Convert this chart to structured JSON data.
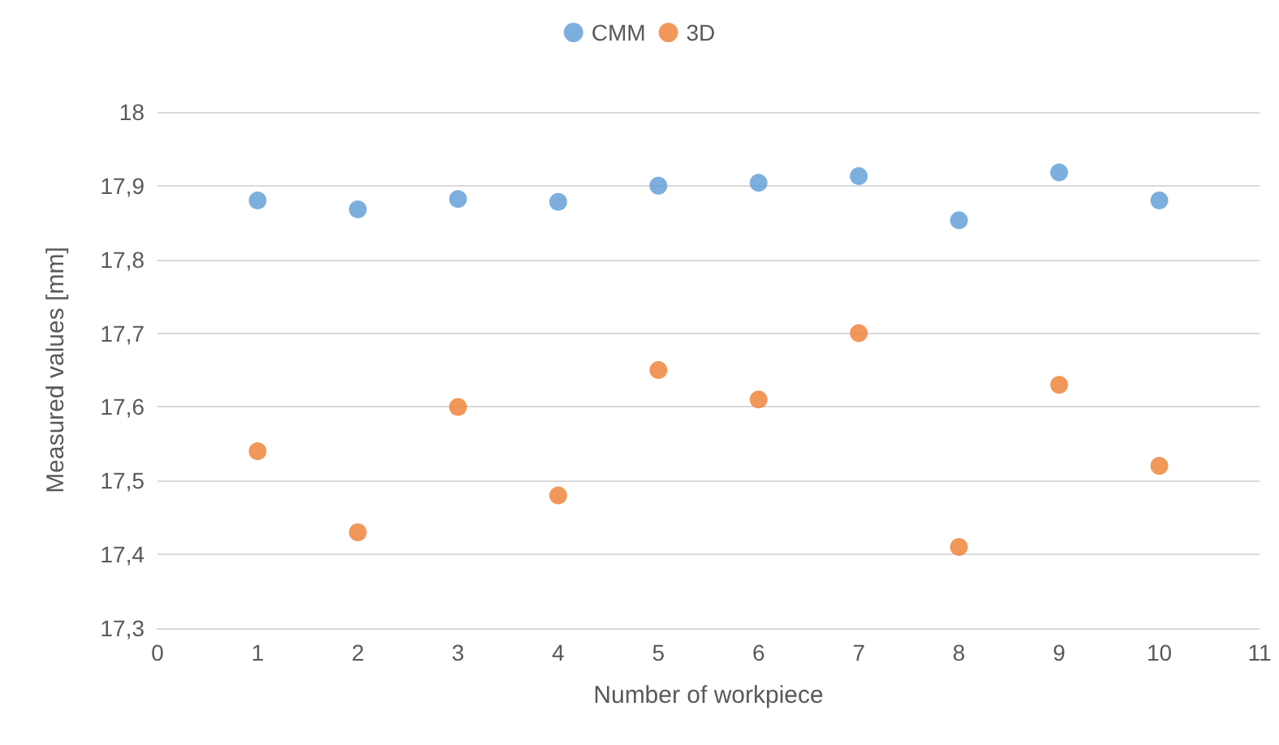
{
  "chart_data": {
    "type": "scatter",
    "xlabel": "Number of workpiece",
    "ylabel": "Measured values [mm]",
    "x": [
      1,
      2,
      3,
      4,
      5,
      6,
      7,
      8,
      9,
      10
    ],
    "series": [
      {
        "name": "CMM",
        "color": "#5b9bd5",
        "values": [
          17.88,
          17.868,
          17.882,
          17.878,
          17.9,
          17.904,
          17.913,
          17.853,
          17.918,
          17.88
        ]
      },
      {
        "name": "3D",
        "color": "#ed7d31",
        "values": [
          17.54,
          17.43,
          17.6,
          17.48,
          17.65,
          17.61,
          17.7,
          17.41,
          17.63,
          17.52
        ]
      }
    ],
    "xlim": [
      0,
      11
    ],
    "xticks": [
      0,
      1,
      2,
      3,
      4,
      5,
      6,
      7,
      8,
      9,
      10,
      11
    ],
    "ylim": [
      17.3,
      18
    ],
    "yticks": [
      {
        "value": 17.3,
        "label": "17,3"
      },
      {
        "value": 17.4,
        "label": "17,4"
      },
      {
        "value": 17.5,
        "label": "17,5"
      },
      {
        "value": 17.6,
        "label": "17,6"
      },
      {
        "value": 17.7,
        "label": "17,7"
      },
      {
        "value": 17.8,
        "label": "17,8"
      },
      {
        "value": 17.9,
        "label": "17,9"
      },
      {
        "value": 18,
        "label": "18"
      }
    ],
    "grid": "y",
    "legend": "top",
    "marker": "circle"
  }
}
